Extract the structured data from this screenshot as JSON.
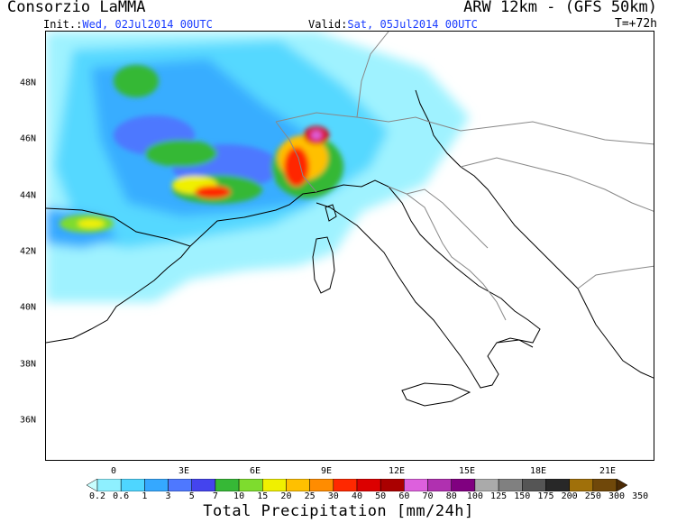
{
  "header": {
    "org": "Consorzio LaMMA",
    "model": "ARW 12km - (GFS 50km)",
    "init_label": "Init.:",
    "init_value": "Wed, 02Jul2014 00UTC",
    "valid_label": "Valid:",
    "valid_value": "Sat, 05Jul2014 00UTC",
    "lead": "T=+72h"
  },
  "map": {
    "lat_labels": [
      "48N",
      "46N",
      "44N",
      "42N",
      "40N",
      "38N",
      "36N"
    ],
    "lon_labels": [
      "0",
      "3E",
      "6E",
      "9E",
      "12E",
      "15E",
      "18E",
      "21E"
    ]
  },
  "legend": {
    "title": "Total Precipitation [mm/24h]",
    "levels": [
      "0.2",
      "0.6",
      "1",
      "3",
      "5",
      "7",
      "10",
      "15",
      "20",
      "25",
      "30",
      "40",
      "50",
      "60",
      "70",
      "80",
      "100",
      "125",
      "150",
      "175",
      "200",
      "250",
      "300",
      "350"
    ],
    "colors": [
      "#c8ffff",
      "#8ef0ff",
      "#4ed6ff",
      "#35a8ff",
      "#4e78ff",
      "#4444ee",
      "#36b836",
      "#7edc2e",
      "#f0f000",
      "#ffc000",
      "#ff8c00",
      "#ff2800",
      "#dc0000",
      "#aa0000",
      "#dd60dd",
      "#b030b0",
      "#800080",
      "#aaaaaa",
      "#808080",
      "#555555",
      "#282828",
      "#a0700a",
      "#70480a",
      "#4a2a05"
    ]
  }
}
